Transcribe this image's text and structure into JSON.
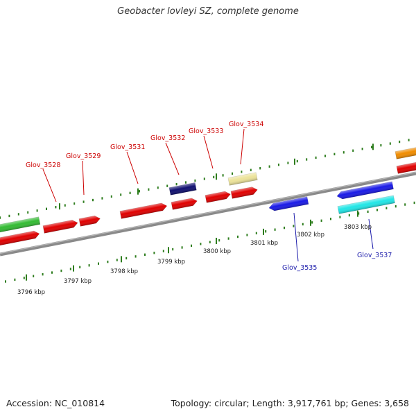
{
  "title": "Geobacter lovleyi SZ, complete genome",
  "footer": {
    "accession": "Accession: NC_010814",
    "stats": "Topology: circular; Length: 3,917,761 bp; Genes: 3,658"
  },
  "colors": {
    "backbone": "#8a8a8a",
    "ticks": "#2e7d1e",
    "forward_label": "#cc0000",
    "reverse_label": "#1a1aaa"
  },
  "scale_labels": [
    "3796 kbp",
    "3797 kbp",
    "3798 kbp",
    "3799 kbp",
    "3800 kbp",
    "3801 kbp",
    "3802 kbp",
    "3803 kbp"
  ],
  "gene_labels_top": [
    "Glov_3528",
    "Glov_3529",
    "Glov_3531",
    "Glov_3532",
    "Glov_3533",
    "Glov_3534"
  ],
  "gene_labels_bottom": [
    "Glov_3535",
    "Glov_3537"
  ],
  "genes": [
    {
      "name": "gene-green-left",
      "color": "#33bb33",
      "strand": "forward"
    },
    {
      "name": "gene-red-left-1",
      "color": "#e00000",
      "strand": "forward"
    },
    {
      "name": "gene-red-left-2",
      "color": "#e00000",
      "strand": "forward"
    },
    {
      "name": "gene-red-left-3",
      "color": "#e00000",
      "strand": "forward"
    },
    {
      "name": "gene-red-mid-1",
      "color": "#e00000",
      "strand": "forward"
    },
    {
      "name": "gene-navy",
      "color": "#101070",
      "strand": "forward"
    },
    {
      "name": "gene-red-mid-2",
      "color": "#e00000",
      "strand": "forward"
    },
    {
      "name": "gene-red-mid-3",
      "color": "#e00000",
      "strand": "forward"
    },
    {
      "name": "gene-khaki",
      "color": "#ece39a",
      "strand": "forward"
    },
    {
      "name": "gene-red-mid-4",
      "color": "#e00000",
      "strand": "forward"
    },
    {
      "name": "gene-blue-1",
      "color": "#1a1ae6",
      "strand": "reverse"
    },
    {
      "name": "gene-blue-2",
      "color": "#1a1ae6",
      "strand": "reverse"
    },
    {
      "name": "gene-cyan",
      "color": "#22e6e6",
      "strand": "reverse"
    },
    {
      "name": "gene-orange",
      "color": "#f08c00",
      "strand": "forward"
    },
    {
      "name": "gene-red-right",
      "color": "#e00000",
      "strand": "forward"
    }
  ]
}
